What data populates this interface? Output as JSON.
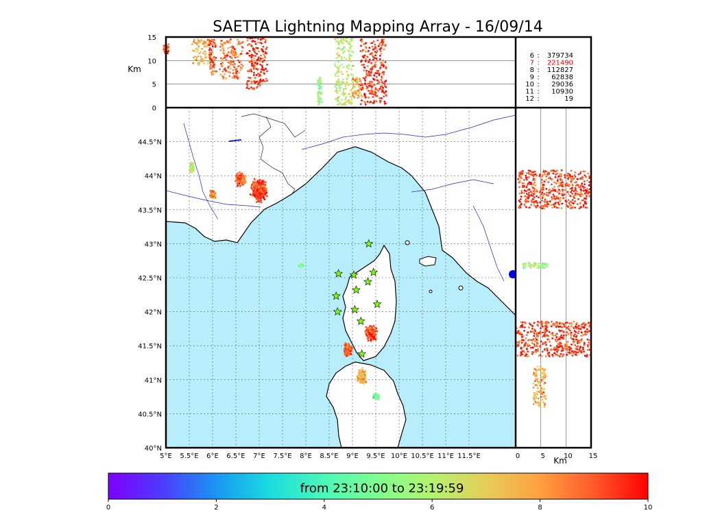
{
  "title": "SAETTA Lightning Mapping Array - 16/09/14",
  "chart_data": {
    "type": "scatter",
    "title": "SAETTA Lightning Mapping Array - 16/09/14",
    "colors": {
      "sea": "#b8eefc",
      "river": "#2222cc",
      "grid": "#555555",
      "station": "#7cfc00",
      "legend_highlight": "#ff0000"
    },
    "map": {
      "lon_range": [
        5,
        12.5
      ],
      "lat_range": [
        40,
        45
      ],
      "lon_ticks": [
        "5°E",
        "5.5°E",
        "6°E",
        "6.5°E",
        "7°E",
        "7.5°E",
        "8°E",
        "8.5°E",
        "9°E",
        "9.5°E",
        "10°E",
        "10.5°E",
        "11°E",
        "11.5°E"
      ],
      "lat_ticks": [
        "40°N",
        "40.5°N",
        "41°N",
        "41.5°N",
        "42°N",
        "42.5°N",
        "43°N",
        "43.5°N",
        "44°N",
        "44.5°N"
      ]
    },
    "altitude_top": {
      "ylabel": "Km",
      "ylim": [
        0,
        15
      ],
      "y_ticks": [
        "0",
        "5",
        "10",
        "15"
      ]
    },
    "altitude_side": {
      "xlabel": "Km",
      "xlim": [
        0,
        15
      ],
      "x_ticks": [
        "0",
        "5",
        "10",
        "15"
      ]
    },
    "station_counts": [
      {
        "id": "6",
        "count": "379734",
        "highlight": false
      },
      {
        "id": "7",
        "count": "221490",
        "highlight": true
      },
      {
        "id": "8",
        "count": "112827",
        "highlight": false
      },
      {
        "id": "9",
        "count": "62838",
        "highlight": false
      },
      {
        "id": "10",
        "count": "29036",
        "highlight": false
      },
      {
        "id": "11",
        "count": "10930",
        "highlight": false
      },
      {
        "id": "12",
        "count": "19",
        "highlight": false
      }
    ],
    "stations": [
      {
        "lon": 9.35,
        "lat": 43.0
      },
      {
        "lon": 8.7,
        "lat": 42.56
      },
      {
        "lon": 9.03,
        "lat": 42.54
      },
      {
        "lon": 9.45,
        "lat": 42.58
      },
      {
        "lon": 9.33,
        "lat": 42.44
      },
      {
        "lon": 9.08,
        "lat": 42.32
      },
      {
        "lon": 8.65,
        "lat": 42.23
      },
      {
        "lon": 9.53,
        "lat": 42.11
      },
      {
        "lon": 9.05,
        "lat": 42.03
      },
      {
        "lon": 8.68,
        "lat": 42.0
      },
      {
        "lon": 9.18,
        "lat": 41.86
      },
      {
        "lon": 9.2,
        "lat": 41.38
      }
    ],
    "clusters": [
      {
        "lon": 7.0,
        "lat": 43.78,
        "r_lon": 0.2,
        "r_lat": 0.2,
        "c": 9.3
      },
      {
        "lon": 6.6,
        "lat": 43.95,
        "r_lon": 0.13,
        "r_lat": 0.12,
        "c": 8.7
      },
      {
        "lon": 6.0,
        "lat": 43.72,
        "r_lon": 0.08,
        "r_lat": 0.07,
        "c": 8.3
      },
      {
        "lon": 5.55,
        "lat": 44.12,
        "r_lon": 0.06,
        "r_lat": 0.1,
        "c": 6.5
      },
      {
        "lon": 9.4,
        "lat": 41.67,
        "r_lon": 0.15,
        "r_lat": 0.14,
        "c": 9.3
      },
      {
        "lon": 8.9,
        "lat": 41.45,
        "r_lon": 0.11,
        "r_lat": 0.13,
        "c": 9.0
      },
      {
        "lon": 9.2,
        "lat": 41.05,
        "r_lon": 0.12,
        "r_lat": 0.14,
        "c": 7.6
      },
      {
        "lon": 9.5,
        "lat": 40.75,
        "r_lon": 0.08,
        "r_lat": 0.05,
        "c": 5.0
      },
      {
        "lon": 7.9,
        "lat": 42.68,
        "r_lon": 0.06,
        "r_lat": 0.03,
        "c": 5.6
      }
    ],
    "altitude_columns": [
      {
        "lon": 5.0,
        "z0": 11.5,
        "z1": 13.5,
        "w": 0.06,
        "c": 9.0
      },
      {
        "lon": 5.75,
        "z0": 9.0,
        "z1": 14.5,
        "w": 0.2,
        "c": 7.8
      },
      {
        "lon": 6.0,
        "z0": 7.0,
        "z1": 14.5,
        "w": 0.08,
        "c": 9.3
      },
      {
        "lon": 6.4,
        "z0": 6.0,
        "z1": 14.5,
        "w": 0.25,
        "c": 8.6
      },
      {
        "lon": 6.95,
        "z0": 4.0,
        "z1": 15.0,
        "w": 0.22,
        "c": 9.5
      },
      {
        "lon": 8.3,
        "z0": 0.5,
        "z1": 6.5,
        "w": 0.05,
        "c": 5.5
      },
      {
        "lon": 8.82,
        "z0": 0.5,
        "z1": 15.0,
        "w": 0.2,
        "c": 6.3
      },
      {
        "lon": 9.1,
        "z0": 2.0,
        "z1": 6.5,
        "w": 0.1,
        "c": 7.9
      },
      {
        "lon": 9.45,
        "z0": 0.5,
        "z1": 14.5,
        "w": 0.28,
        "c": 9.4
      }
    ],
    "side_bands": [
      {
        "lat": 43.8,
        "h": 0.28,
        "x0": 0.5,
        "x1": 15.0,
        "c": 9.2
      },
      {
        "lat": 41.6,
        "h": 0.26,
        "x0": 0.2,
        "x1": 15.0,
        "c": 9.3
      },
      {
        "lat": 42.68,
        "h": 0.04,
        "x0": 1.5,
        "x1": 6.5,
        "c": 5.6
      },
      {
        "lat": 40.9,
        "h": 0.3,
        "x0": 3.5,
        "x1": 6.0,
        "c": 7.7
      }
    ],
    "colorbar": {
      "label": "from 23:10:00 to 23:19:59",
      "range": [
        0,
        10
      ],
      "ticks": [
        "0",
        "2",
        "4",
        "6",
        "8",
        "10"
      ],
      "stops": [
        "#7f00ff",
        "#4c3cfc",
        "#1996f3",
        "#1adcde",
        "#4cf8b8",
        "#80fe8e",
        "#b3f36e",
        "#e6cd5a",
        "#ffa040",
        "#ff5a2a",
        "#ff0000"
      ]
    }
  }
}
